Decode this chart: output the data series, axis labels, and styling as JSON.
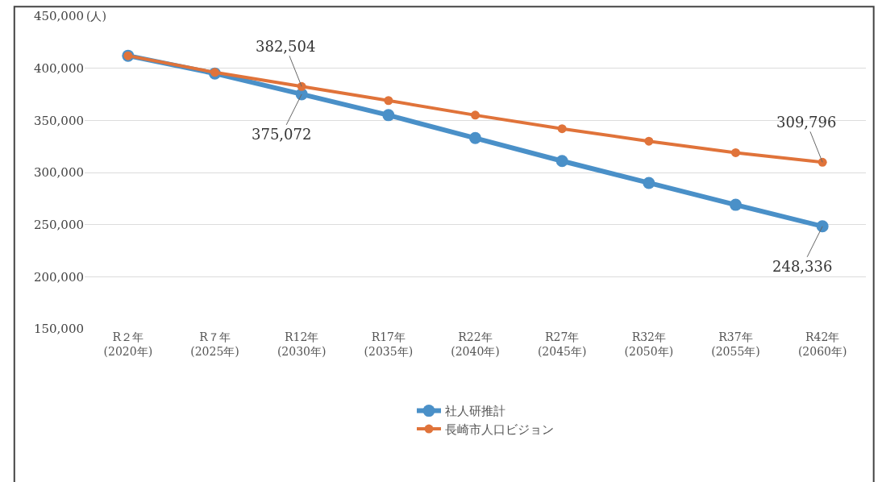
{
  "chart_data": {
    "type": "line",
    "ylabel": "(人)",
    "categories": [
      "R２年\n(2020年)",
      "R７年\n(2025年)",
      "R12年\n(2030年)",
      "R17年\n(2035年)",
      "R22年\n(2040年)",
      "R27年\n(2045年)",
      "R32年\n(2050年)",
      "R37年\n(2055年)",
      "R42年\n(2060年)"
    ],
    "series": [
      {
        "name": "社人研推計",
        "color": "#4a90c8",
        "values": [
          412000,
          395000,
          375072,
          355000,
          333000,
          311000,
          290000,
          269000,
          248336
        ]
      },
      {
        "name": "長崎市人口ビジョン",
        "color": "#e0733a",
        "values": [
          412000,
          396000,
          382504,
          369000,
          355000,
          342000,
          330000,
          319000,
          309796
        ]
      }
    ],
    "annotations": [
      {
        "text": "382,504",
        "x": "R12年\n(2030年)",
        "y": 382504
      },
      {
        "text": "375,072",
        "x": "R12年\n(2030年)",
        "y": 375072
      },
      {
        "text": "309,796",
        "x": "R42年\n(2060年)",
        "y": 309796
      },
      {
        "text": "248,336",
        "x": "R42年\n(2060年)",
        "y": 248336
      }
    ],
    "ylim": [
      150000,
      450000
    ],
    "yticks": [
      {
        "value": 150000,
        "label": "150,000"
      },
      {
        "value": 200000,
        "label": "200,000"
      },
      {
        "value": 250000,
        "label": "250,000"
      },
      {
        "value": 300000,
        "label": "300,000"
      },
      {
        "value": 350000,
        "label": "350,000"
      },
      {
        "value": 400000,
        "label": "400,000"
      },
      {
        "value": 450000,
        "label": "450,000"
      }
    ],
    "grid": "y",
    "legend": "bottom",
    "marker": "circle",
    "line_style": "solid"
  }
}
